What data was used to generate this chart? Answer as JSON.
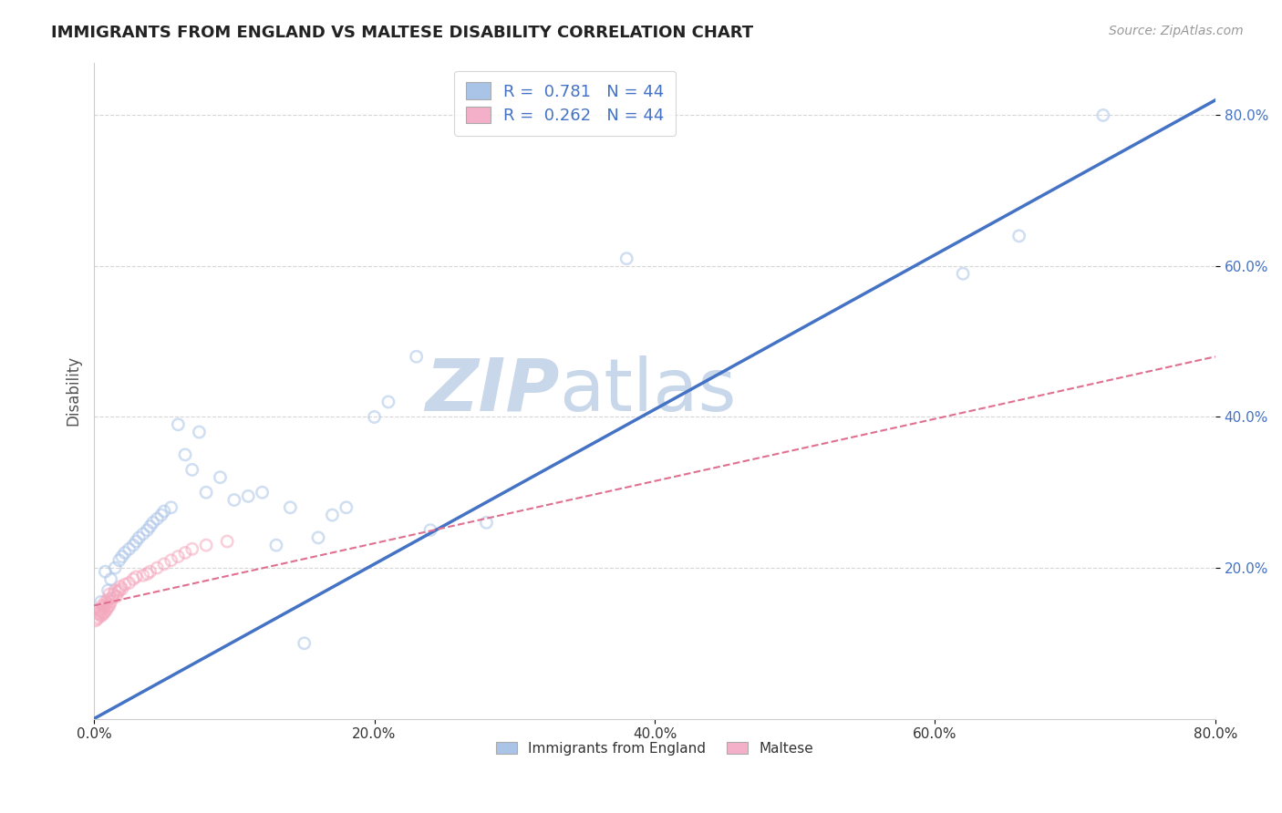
{
  "title": "IMMIGRANTS FROM ENGLAND VS MALTESE DISABILITY CORRELATION CHART",
  "source": "Source: ZipAtlas.com",
  "ylabel": "Disability",
  "xmin": 0.0,
  "xmax": 0.8,
  "ymin": 0.0,
  "ymax": 0.87,
  "x_ticks": [
    0.0,
    0.2,
    0.4,
    0.6,
    0.8
  ],
  "x_tick_labels": [
    "0.0%",
    "20.0%",
    "40.0%",
    "60.0%",
    "80.0%"
  ],
  "y_ticks_right": [
    0.2,
    0.4,
    0.6,
    0.8
  ],
  "y_tick_labels_right": [
    "20.0%",
    "40.0%",
    "60.0%",
    "80.0%"
  ],
  "watermark_zip": "ZIP",
  "watermark_atlas": "atlas",
  "legend_label_1": "R =  0.781   N = 44",
  "legend_label_2": "R =  0.262   N = 44",
  "legend_color_1": "#aac4e8",
  "legend_color_2": "#f4b0c8",
  "blue_scatter_x": [
    0.005,
    0.008,
    0.01,
    0.012,
    0.015,
    0.018,
    0.02,
    0.022,
    0.025,
    0.028,
    0.03,
    0.032,
    0.035,
    0.038,
    0.04,
    0.042,
    0.045,
    0.048,
    0.05,
    0.055,
    0.06,
    0.065,
    0.07,
    0.075,
    0.08,
    0.09,
    0.1,
    0.11,
    0.12,
    0.13,
    0.14,
    0.15,
    0.16,
    0.17,
    0.18,
    0.2,
    0.21,
    0.23,
    0.24,
    0.28,
    0.38,
    0.62,
    0.66,
    0.72
  ],
  "blue_scatter_y": [
    0.155,
    0.195,
    0.17,
    0.185,
    0.2,
    0.21,
    0.215,
    0.22,
    0.225,
    0.23,
    0.235,
    0.24,
    0.245,
    0.25,
    0.255,
    0.26,
    0.265,
    0.27,
    0.275,
    0.28,
    0.39,
    0.35,
    0.33,
    0.38,
    0.3,
    0.32,
    0.29,
    0.295,
    0.3,
    0.23,
    0.28,
    0.1,
    0.24,
    0.27,
    0.28,
    0.4,
    0.42,
    0.48,
    0.25,
    0.26,
    0.61,
    0.59,
    0.64,
    0.8
  ],
  "pink_scatter_x": [
    0.001,
    0.002,
    0.003,
    0.003,
    0.004,
    0.004,
    0.005,
    0.005,
    0.006,
    0.006,
    0.007,
    0.007,
    0.008,
    0.008,
    0.009,
    0.009,
    0.01,
    0.01,
    0.011,
    0.011,
    0.012,
    0.013,
    0.014,
    0.015,
    0.016,
    0.017,
    0.018,
    0.019,
    0.02,
    0.022,
    0.025,
    0.028,
    0.03,
    0.035,
    0.038,
    0.04,
    0.045,
    0.05,
    0.055,
    0.06,
    0.065,
    0.07,
    0.08,
    0.095
  ],
  "pink_scatter_y": [
    0.13,
    0.132,
    0.134,
    0.14,
    0.138,
    0.145,
    0.136,
    0.142,
    0.138,
    0.15,
    0.14,
    0.148,
    0.142,
    0.155,
    0.145,
    0.152,
    0.148,
    0.158,
    0.15,
    0.165,
    0.155,
    0.16,
    0.165,
    0.17,
    0.162,
    0.168,
    0.17,
    0.175,
    0.172,
    0.178,
    0.18,
    0.185,
    0.188,
    0.19,
    0.192,
    0.195,
    0.2,
    0.205,
    0.21,
    0.215,
    0.22,
    0.225,
    0.23,
    0.235
  ],
  "blue_line_x": [
    0.0,
    0.8
  ],
  "blue_line_y": [
    0.0,
    0.82
  ],
  "pink_line_x": [
    0.0,
    0.8
  ],
  "pink_line_y": [
    0.15,
    0.48
  ],
  "grid_color": "#cccccc",
  "blue_scatter_color": "#aac4e8",
  "pink_scatter_color": "#f4a8be",
  "blue_line_color": "#4472c4",
  "pink_line_color": "#e07090",
  "scatter_size": 80,
  "scatter_alpha": 0.55,
  "title_color": "#222222",
  "source_color": "#999999",
  "watermark_color": "#c8d8ea",
  "axis_label_color": "#555555",
  "tick_label_color_blue": "#4472c4",
  "bottom_legend_1": "Immigrants from England",
  "bottom_legend_2": "Maltese"
}
